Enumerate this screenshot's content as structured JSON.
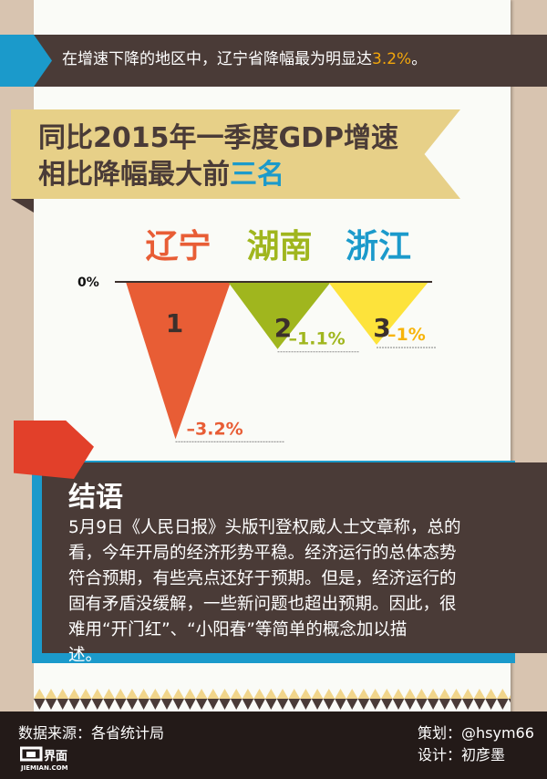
{
  "banner": {
    "text": "在增速下降的地区中，辽宁省降幅最为明显达",
    "highlight": "3.2%",
    "suffix": "。"
  },
  "ribbon": {
    "line1": "同比2015年一季度GDP增速",
    "line2_main": "相比降幅最大前",
    "line2_highlight": "三名"
  },
  "chart_data": {
    "type": "bar",
    "baseline_label": "0%",
    "categories": [
      "辽宁",
      "湖南",
      "浙江"
    ],
    "ranks": [
      "1",
      "2",
      "3"
    ],
    "values": [
      -3.2,
      -1.1,
      -1.0
    ],
    "value_labels": [
      "–3.2%",
      "–1.1%",
      "–1%"
    ],
    "colors": [
      "#e85d35",
      "#a0b61e",
      "#fde33b"
    ],
    "category_colors": [
      "#e85d35",
      "#a0b61e",
      "#1b9acb"
    ],
    "label_colors": [
      "#e85d35",
      "#a0b61e",
      "#f7b40a"
    ]
  },
  "conclusion": {
    "title": "结语",
    "lines": [
      "5月9日《人民日报》头版刊登权威人士文章称，总的",
      "看，今年开局的经济形势平稳。经济运行的总体态势",
      "符合预期，有些亮点还好于预期。但是，经济运行的",
      "固有矛盾没缓解，一些新问题也超出预期。因此，很",
      "难用“开门红”、“小阳春”等简单的概念加以描",
      "述。"
    ]
  },
  "footer": {
    "source": "数据来源：各省统计局",
    "planner": "策划：@hsym66",
    "designer": "设计：初彦墨",
    "logo_cn": "界面",
    "logo_en": "JIEMIAN.COM"
  }
}
